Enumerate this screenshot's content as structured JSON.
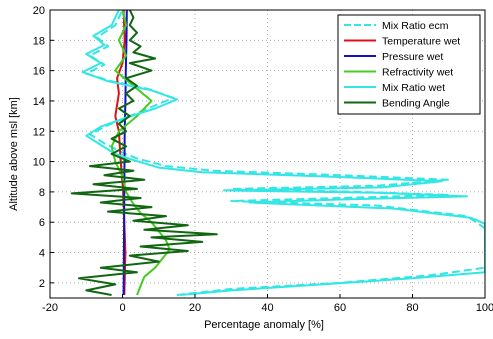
{
  "chart_data": {
    "type": "line",
    "xlabel": "Percentage anomaly [%]",
    "ylabel": "Altitude above msl [km]",
    "xlim": [
      -20,
      100
    ],
    "ylim": [
      1,
      20
    ],
    "x_ticks": [
      "-20",
      "0",
      "20",
      "40",
      "60",
      "80",
      "100"
    ],
    "y_ticks": [
      "2",
      "4",
      "6",
      "8",
      "10",
      "12",
      "14",
      "16",
      "18",
      "20"
    ],
    "grid": true,
    "legend_position": "top-right",
    "series": [
      {
        "name": "Mix Ratio ecm",
        "color": "#33e6e6",
        "dash": true,
        "points": [
          [
            15,
            1.2
          ],
          [
            30,
            1.6
          ],
          [
            60,
            2.0
          ],
          [
            85,
            2.5
          ],
          [
            100,
            3.0
          ],
          [
            100,
            5.6
          ],
          [
            95,
            6.4
          ],
          [
            70,
            7.1
          ],
          [
            30,
            7.4
          ],
          [
            60,
            7.6
          ],
          [
            90,
            7.8
          ],
          [
            65,
            8.0
          ],
          [
            30,
            8.2
          ],
          [
            70,
            8.4
          ],
          [
            90,
            8.8
          ],
          [
            60,
            9.1
          ],
          [
            25,
            9.4
          ],
          [
            12,
            9.7
          ],
          [
            4,
            10.2
          ],
          [
            0,
            10.6
          ],
          [
            -5,
            11.2
          ],
          [
            -9,
            11.8
          ],
          [
            -4,
            12.4
          ],
          [
            2,
            13.0
          ],
          [
            8,
            13.6
          ],
          [
            14,
            14.2
          ],
          [
            7,
            14.8
          ],
          [
            -3,
            15.3
          ],
          [
            -10,
            15.8
          ],
          [
            -5,
            16.4
          ],
          [
            -9,
            17.0
          ],
          [
            -4,
            17.6
          ],
          [
            -7,
            18.2
          ],
          [
            -2,
            19.0
          ],
          [
            0,
            20
          ]
        ]
      },
      {
        "name": "Temperature wet",
        "color": "#dd1111",
        "dash": false,
        "points": [
          [
            0.5,
            1.2
          ],
          [
            0.8,
            4
          ],
          [
            0.2,
            8
          ],
          [
            -0.5,
            10
          ],
          [
            -1,
            12
          ],
          [
            -2,
            13
          ],
          [
            -1,
            14.5
          ],
          [
            -1.5,
            15.5
          ],
          [
            0,
            16.5
          ],
          [
            0.6,
            18
          ],
          [
            0.3,
            20
          ]
        ]
      },
      {
        "name": "Pressure wet",
        "color": "#1111cc",
        "dash": false,
        "points": [
          [
            0.3,
            1.2
          ],
          [
            0.4,
            4
          ],
          [
            0.5,
            8
          ],
          [
            0.6,
            12
          ],
          [
            0.8,
            14
          ],
          [
            0.9,
            16
          ],
          [
            1.1,
            18
          ],
          [
            1.2,
            20
          ]
        ]
      },
      {
        "name": "Refractivity wet",
        "color": "#44cc22",
        "dash": false,
        "points": [
          [
            4,
            1.2
          ],
          [
            5,
            1.8
          ],
          [
            6,
            2.4
          ],
          [
            9,
            3.0
          ],
          [
            11,
            3.6
          ],
          [
            13,
            4.2
          ],
          [
            12,
            4.8
          ],
          [
            10,
            5.4
          ],
          [
            8,
            6.0
          ],
          [
            5,
            6.6
          ],
          [
            3,
            7.2
          ],
          [
            1,
            8.0
          ],
          [
            0,
            9.0
          ],
          [
            -2,
            10.0
          ],
          [
            -3,
            11.0
          ],
          [
            -1,
            12.0
          ],
          [
            4,
            13.0
          ],
          [
            8,
            14.0
          ],
          [
            3,
            15.0
          ],
          [
            -2,
            16.0
          ],
          [
            1,
            17.0
          ],
          [
            -1,
            18.0
          ],
          [
            1,
            19.0
          ],
          [
            0,
            20
          ]
        ]
      },
      {
        "name": "Mix Ratio wet",
        "color": "#33e6e6",
        "dash": false,
        "points": [
          [
            16,
            1.2
          ],
          [
            30,
            1.5
          ],
          [
            55,
            1.9
          ],
          [
            80,
            2.3
          ],
          [
            100,
            2.7
          ],
          [
            100,
            5.9
          ],
          [
            96,
            6.3
          ],
          [
            75,
            6.9
          ],
          [
            35,
            7.3
          ],
          [
            60,
            7.5
          ],
          [
            95,
            7.7
          ],
          [
            70,
            7.95
          ],
          [
            28,
            8.1
          ],
          [
            72,
            8.3
          ],
          [
            88,
            8.7
          ],
          [
            58,
            9.0
          ],
          [
            22,
            9.3
          ],
          [
            10,
            9.6
          ],
          [
            3,
            10.1
          ],
          [
            -2,
            10.5
          ],
          [
            -6,
            11.1
          ],
          [
            -10,
            11.7
          ],
          [
            -6,
            12.3
          ],
          [
            1,
            12.9
          ],
          [
            9,
            13.5
          ],
          [
            15,
            14.1
          ],
          [
            8,
            14.7
          ],
          [
            -4,
            15.3
          ],
          [
            -11,
            15.9
          ],
          [
            -6,
            16.5
          ],
          [
            -10,
            17.1
          ],
          [
            -5,
            17.7
          ],
          [
            -8,
            18.3
          ],
          [
            -3,
            19.0
          ],
          [
            -1,
            20
          ]
        ]
      },
      {
        "name": "Bending Angle",
        "color": "#116611",
        "dash": false,
        "points": [
          [
            -3,
            1.2
          ],
          [
            -10,
            1.5
          ],
          [
            -2,
            1.9
          ],
          [
            -12,
            2.3
          ],
          [
            4,
            2.7
          ],
          [
            -6,
            3.0
          ],
          [
            10,
            3.4
          ],
          [
            2,
            3.8
          ],
          [
            18,
            4.1
          ],
          [
            5,
            4.4
          ],
          [
            22,
            4.7
          ],
          [
            8,
            5.0
          ],
          [
            26,
            5.2
          ],
          [
            6,
            5.5
          ],
          [
            18,
            5.8
          ],
          [
            3,
            6.1
          ],
          [
            12,
            6.4
          ],
          [
            -4,
            6.7
          ],
          [
            8,
            7.0
          ],
          [
            -6,
            7.3
          ],
          [
            5,
            7.6
          ],
          [
            -14,
            7.9
          ],
          [
            4,
            8.2
          ],
          [
            -8,
            8.5
          ],
          [
            6,
            8.8
          ],
          [
            -5,
            9.1
          ],
          [
            3,
            9.4
          ],
          [
            -9,
            9.7
          ],
          [
            2,
            10.0
          ],
          [
            -3,
            10.5
          ],
          [
            1,
            11
          ],
          [
            -3,
            11.5
          ],
          [
            1,
            12
          ],
          [
            -1,
            12.5
          ],
          [
            2,
            13
          ],
          [
            -1,
            13.5
          ],
          [
            3,
            14
          ],
          [
            1,
            14.5
          ],
          [
            4,
            15
          ],
          [
            1,
            15.5
          ],
          [
            8,
            16
          ],
          [
            2,
            16.5
          ],
          [
            9,
            16.8
          ],
          [
            3,
            17.2
          ],
          [
            5,
            17.6
          ],
          [
            2,
            18
          ],
          [
            4,
            18.5
          ],
          [
            2,
            19
          ],
          [
            3,
            19.5
          ],
          [
            2,
            20
          ]
        ]
      }
    ]
  }
}
